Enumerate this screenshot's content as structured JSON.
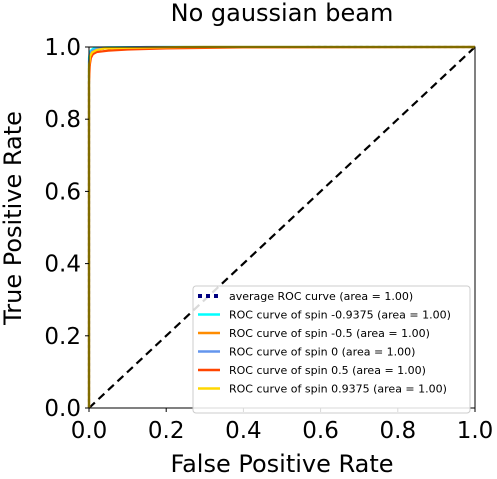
{
  "chart_data": {
    "type": "line",
    "title": "No gaussian beam",
    "xlabel": "False Positive Rate",
    "ylabel": "True Positive Rate",
    "xlim": [
      0.0,
      1.0
    ],
    "ylim": [
      0.0,
      1.0
    ],
    "x_ticks": [
      "0.0",
      "0.2",
      "0.4",
      "0.6",
      "0.8",
      "1.0"
    ],
    "y_ticks": [
      "0.0",
      "0.2",
      "0.4",
      "0.6",
      "0.8",
      "1.0"
    ],
    "grid": false,
    "legend_position": "bottom-right",
    "series": [
      {
        "name": "average ROC curve (area = 1.00)",
        "color": "#000080",
        "style": "dotted",
        "x": [
          0.0,
          0.0,
          0.003,
          0.01,
          0.02,
          0.04,
          0.1,
          0.3,
          0.6,
          1.0
        ],
        "y": [
          0.0,
          0.93,
          0.97,
          0.985,
          0.992,
          0.996,
          0.998,
          0.999,
          1.0,
          1.0
        ]
      },
      {
        "name": "ROC curve of spin -0.9375 (area = 1.00)",
        "color": "#00ffff",
        "style": "solid",
        "x": [
          0.0,
          0.0,
          0.002,
          0.005,
          0.01,
          0.02,
          0.05,
          0.2,
          1.0
        ],
        "y": [
          0.0,
          0.97,
          0.985,
          0.99,
          0.995,
          0.998,
          0.999,
          1.0,
          1.0
        ]
      },
      {
        "name": "ROC curve of spin -0.5 (area = 1.00)",
        "color": "#ff8c00",
        "style": "solid",
        "x": [
          0.0,
          0.0,
          0.004,
          0.01,
          0.02,
          0.04,
          0.1,
          0.3,
          1.0
        ],
        "y": [
          0.0,
          0.94,
          0.97,
          0.985,
          0.992,
          0.996,
          0.998,
          1.0,
          1.0
        ]
      },
      {
        "name": "ROC curve of spin 0 (area = 1.00)",
        "color": "#6495ed",
        "style": "solid",
        "x": [
          0.0,
          0.0,
          0.003,
          0.008,
          0.02,
          0.05,
          0.15,
          1.0
        ],
        "y": [
          0.0,
          0.96,
          0.98,
          0.99,
          0.995,
          0.998,
          1.0,
          1.0
        ]
      },
      {
        "name": "ROC curve of spin 0.5 (area = 1.00)",
        "color": "#ff4500",
        "style": "solid",
        "x": [
          0.0,
          0.0,
          0.002,
          0.005,
          0.01,
          0.02,
          0.05,
          0.1,
          0.2,
          0.4,
          1.0
        ],
        "y": [
          0.0,
          0.9,
          0.95,
          0.97,
          0.98,
          0.986,
          0.99,
          0.993,
          0.996,
          0.999,
          1.0
        ]
      },
      {
        "name": "ROC curve of spin 0.9375 (area = 1.00)",
        "color": "#ffd700",
        "style": "solid",
        "x": [
          0.0,
          0.0,
          0.003,
          0.008,
          0.02,
          0.04,
          0.1,
          0.25,
          1.0
        ],
        "y": [
          0.0,
          0.95,
          0.975,
          0.985,
          0.992,
          0.996,
          0.998,
          1.0,
          1.0
        ]
      }
    ],
    "reference_line": {
      "x": [
        0.0,
        1.0
      ],
      "y": [
        0.0,
        1.0
      ],
      "color": "#000000",
      "style": "dashed"
    }
  }
}
